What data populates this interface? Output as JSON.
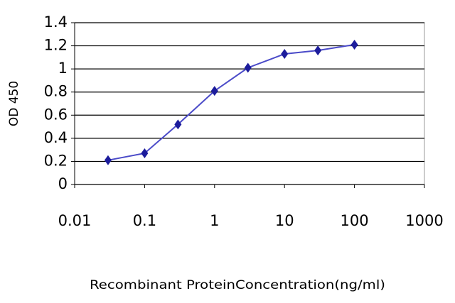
{
  "chart_data": {
    "type": "line",
    "x_label": "Recombinant ProteinConcentration(ng/ml)",
    "y_label": "OD 450",
    "x": [
      0.03,
      0.1,
      0.3,
      1,
      3,
      10,
      30,
      100
    ],
    "values": [
      0.21,
      0.27,
      0.52,
      0.81,
      1.01,
      1.13,
      1.16,
      1.21
    ],
    "color": "#1c1c9c",
    "line_color": "#4a4ac8",
    "xscale": "log",
    "xlim": [
      0.01,
      1000
    ],
    "xticks": [
      0.01,
      0.1,
      1,
      10,
      100,
      1000
    ],
    "ylim": [
      0,
      1.4
    ],
    "yticks": [
      0,
      0.2,
      0.4,
      0.6,
      0.8,
      1,
      1.2,
      1.4
    ],
    "grid": true
  }
}
